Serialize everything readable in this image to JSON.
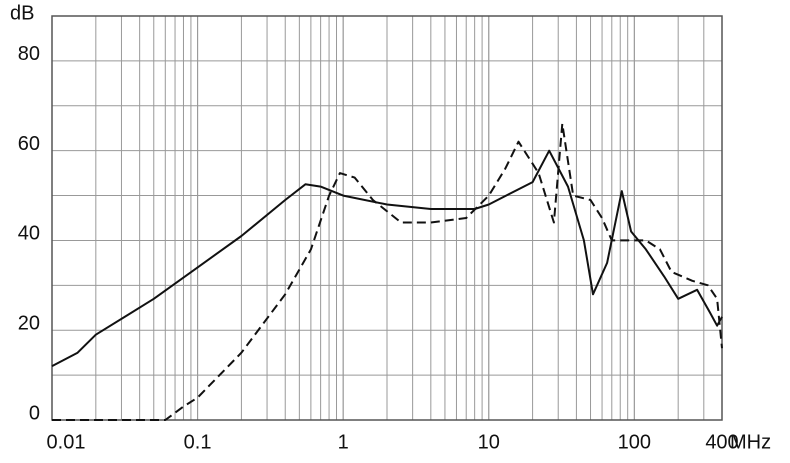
{
  "chart_data": {
    "type": "line",
    "y_axis_label": "dB",
    "x_axis_label": "MHz",
    "xscale": "log",
    "xlim": [
      0.01,
      400
    ],
    "xticks": [
      0.01,
      0.1,
      1,
      10,
      100,
      400
    ],
    "ylim": [
      0,
      90
    ],
    "yticks": [
      0,
      20,
      40,
      60,
      80
    ],
    "y_minor_ticks": [
      10,
      30,
      50,
      70,
      90
    ],
    "grid": true,
    "series": [
      {
        "color": "#111111",
        "style": "solid",
        "x": [
          0.01,
          0.015,
          0.02,
          0.05,
          0.1,
          0.2,
          0.4,
          0.55,
          0.7,
          1,
          2,
          4,
          8,
          10,
          20,
          26,
          35,
          45,
          52,
          65,
          82,
          95,
          120,
          160,
          200,
          270,
          330,
          370,
          400
        ],
        "values": [
          12,
          15,
          19,
          27,
          34,
          41,
          49,
          52.5,
          52,
          50,
          48,
          47,
          47,
          48,
          53,
          60,
          52,
          40,
          28,
          35,
          51,
          42,
          38,
          32,
          27,
          29,
          24,
          21,
          23
        ]
      },
      {
        "color": "#111111",
        "style": "dashed",
        "x": [
          0.01,
          0.02,
          0.04,
          0.06,
          0.08,
          0.1,
          0.2,
          0.4,
          0.6,
          0.8,
          0.95,
          1.2,
          1.6,
          2.5,
          4,
          7,
          10,
          13,
          16,
          22,
          28,
          32,
          38,
          50,
          60,
          70,
          100,
          120,
          150,
          180,
          250,
          320,
          370,
          400
        ],
        "values": [
          0,
          0,
          0,
          0,
          3,
          5,
          15,
          28,
          38,
          50,
          55,
          54,
          49,
          44,
          44,
          45,
          50,
          56,
          62,
          55,
          44,
          66,
          50,
          49,
          45,
          40,
          40,
          40,
          38,
          33,
          31,
          30,
          27,
          16
        ]
      }
    ]
  }
}
